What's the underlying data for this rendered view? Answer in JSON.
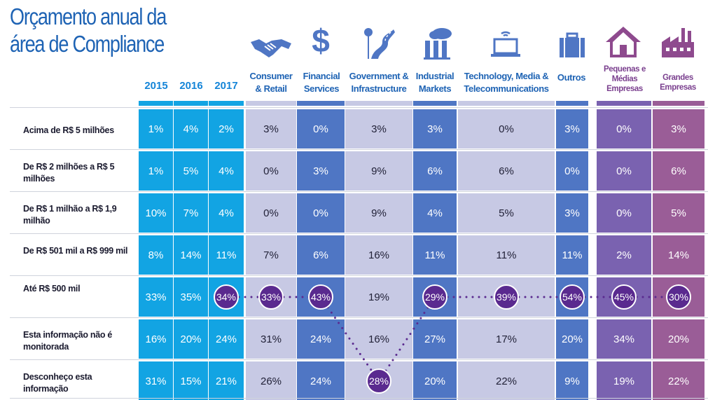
{
  "title": "Orçamento anual da área de Compliance",
  "years": [
    "2015",
    "2016",
    "2017"
  ],
  "headers": {
    "consumer": "Consumer & Retail",
    "financial": "Financial Services",
    "government": "Government & Infrastructure",
    "industrial": "Industrial Markets",
    "tmt": "Technology, Media & Telecommunications",
    "outros": "Outros",
    "pme": "Pequenas e Médias Empresas",
    "grandes": "Grandes Empresas"
  },
  "icons": {
    "consumer": "handshake-icon",
    "financial": "dollar-icon",
    "government": "road-sign-icon",
    "industrial": "factory-cloud-icon",
    "tmt": "laptop-wifi-icon",
    "outros": "briefcase-icon",
    "pme": "house-icon",
    "grandes": "factory-icon"
  },
  "colors": {
    "years": "#12a4e3",
    "light": "#c7c9e4",
    "mid": "#4f76c4",
    "purple": "#7a62b0",
    "mauve": "#9a5d97",
    "bubble": "#5a2a8f"
  },
  "rows": [
    {
      "label": "Acima de R$ 5 milhões",
      "values": [
        "1%",
        "4%",
        "2%",
        "3%",
        "0%",
        "3%",
        "3%",
        "0%",
        "3%",
        "0%",
        "3%"
      ]
    },
    {
      "label": "De R$ 2 milhões a R$ 5 milhões",
      "values": [
        "1%",
        "5%",
        "4%",
        "0%",
        "3%",
        "9%",
        "6%",
        "6%",
        "0%",
        "0%",
        "6%"
      ]
    },
    {
      "label": "De R$ 1 milhão a R$ 1,9 milhão",
      "values": [
        "10%",
        "7%",
        "4%",
        "0%",
        "0%",
        "9%",
        "4%",
        "5%",
        "3%",
        "0%",
        "5%"
      ]
    },
    {
      "label": "De R$ 501 mil a R$ 999 mil",
      "values": [
        "8%",
        "14%",
        "11%",
        "7%",
        "6%",
        "16%",
        "11%",
        "11%",
        "11%",
        "2%",
        "14%"
      ]
    },
    {
      "label": "Até R$ 500 mil",
      "values": [
        "33%",
        "35%",
        "34%",
        "33%",
        "43%",
        "19%",
        "29%",
        "39%",
        "54%",
        "45%",
        "30%"
      ]
    },
    {
      "label": "Esta informação não é monitorada",
      "values": [
        "16%",
        "20%",
        "24%",
        "31%",
        "24%",
        "16%",
        "27%",
        "17%",
        "20%",
        "34%",
        "20%"
      ]
    },
    {
      "label": "Desconheço esta informação",
      "values": [
        "31%",
        "15%",
        "21%",
        "26%",
        "24%",
        "28%",
        "20%",
        "22%",
        "9%",
        "19%",
        "22%"
      ]
    }
  ],
  "highlights": [
    {
      "row": 4,
      "col": 2
    },
    {
      "row": 4,
      "col": 3
    },
    {
      "row": 4,
      "col": 4
    },
    {
      "row": 6,
      "col": 5
    },
    {
      "row": 4,
      "col": 6
    },
    {
      "row": 4,
      "col": 7
    },
    {
      "row": 4,
      "col": 8
    },
    {
      "row": 4,
      "col": 9
    },
    {
      "row": 4,
      "col": 10
    }
  ]
}
